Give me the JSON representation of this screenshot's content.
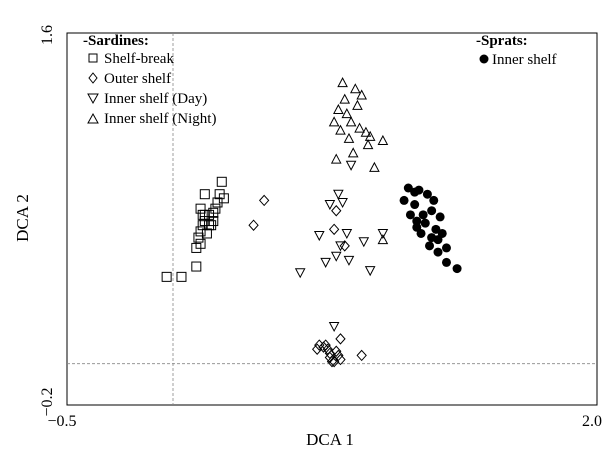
{
  "chart_data": {
    "type": "scatter",
    "xlabel": "DCA 1",
    "ylabel": "DCA 2",
    "xlim": [
      -0.5,
      2.0
    ],
    "ylim": [
      -0.2,
      1.6
    ],
    "x_tick_labels": [
      "−0.5",
      "2.0"
    ],
    "y_tick_labels": [
      "−0.2",
      "1.6"
    ],
    "reference_lines": {
      "x": 0.0,
      "y": 0.0
    },
    "grid": false,
    "legend_groups": [
      {
        "title": "-Sardines:",
        "placement": "top-left",
        "entries": [
          "Shelf-break",
          "Outer shelf",
          "Inner shelf (Day)",
          "Inner shelf (Night)"
        ]
      },
      {
        "title": "-Sprats:",
        "placement": "top-right",
        "entries": [
          "Inner shelf"
        ]
      }
    ],
    "series": [
      {
        "name": "Shelf-break",
        "group": "Sardines",
        "marker": "square",
        "points": [
          [
            -0.03,
            0.42
          ],
          [
            0.04,
            0.42
          ],
          [
            0.11,
            0.47
          ],
          [
            0.11,
            0.56
          ],
          [
            0.12,
            0.61
          ],
          [
            0.13,
            0.58
          ],
          [
            0.13,
            0.64
          ],
          [
            0.14,
            0.67
          ],
          [
            0.16,
            0.63
          ],
          [
            0.17,
            0.72
          ],
          [
            0.15,
            0.72
          ],
          [
            0.15,
            0.69
          ],
          [
            0.14,
            0.72
          ],
          [
            0.13,
            0.75
          ],
          [
            0.15,
            0.82
          ],
          [
            0.17,
            0.67
          ],
          [
            0.18,
            0.67
          ],
          [
            0.19,
            0.69
          ],
          [
            0.19,
            0.73
          ],
          [
            0.2,
            0.75
          ],
          [
            0.21,
            0.78
          ],
          [
            0.22,
            0.82
          ],
          [
            0.23,
            0.88
          ],
          [
            0.24,
            0.8
          ]
        ]
      },
      {
        "name": "Outer shelf",
        "group": "Sardines",
        "marker": "diamond",
        "points": [
          [
            0.38,
            0.67
          ],
          [
            0.43,
            0.79
          ],
          [
            0.68,
            0.07
          ],
          [
            0.69,
            0.09
          ],
          [
            0.71,
            0.08
          ],
          [
            0.72,
            0.09
          ],
          [
            0.73,
            0.07
          ],
          [
            0.74,
            0.05
          ],
          [
            0.74,
            0.03
          ],
          [
            0.75,
            0.01
          ],
          [
            0.76,
            0.01
          ],
          [
            0.77,
            0.06
          ],
          [
            0.78,
            0.04
          ],
          [
            0.79,
            0.02
          ],
          [
            0.79,
            0.12
          ],
          [
            0.81,
            0.57
          ],
          [
            0.76,
            0.65
          ],
          [
            0.77,
            0.74
          ],
          [
            0.89,
            0.04
          ]
        ]
      },
      {
        "name": "Inner shelf (Day)",
        "group": "Sardines",
        "marker": "triangle-down",
        "points": [
          [
            0.6,
            0.44
          ],
          [
            0.69,
            0.62
          ],
          [
            0.72,
            0.49
          ],
          [
            0.74,
            0.77
          ],
          [
            0.76,
            0.18
          ],
          [
            0.77,
            0.52
          ],
          [
            0.78,
            0.82
          ],
          [
            0.79,
            0.57
          ],
          [
            0.8,
            0.78
          ],
          [
            0.82,
            0.63
          ],
          [
            0.83,
            0.5
          ],
          [
            0.84,
            0.96
          ],
          [
            0.9,
            0.59
          ],
          [
            0.93,
            0.45
          ],
          [
            0.99,
            0.63
          ]
        ]
      },
      {
        "name": "Inner shelf (Night)",
        "group": "Sardines",
        "marker": "triangle-up",
        "points": [
          [
            0.76,
            1.17
          ],
          [
            0.77,
            0.99
          ],
          [
            0.78,
            1.23
          ],
          [
            0.79,
            1.13
          ],
          [
            0.8,
            1.36
          ],
          [
            0.81,
            1.28
          ],
          [
            0.82,
            1.21
          ],
          [
            0.83,
            1.09
          ],
          [
            0.84,
            1.17
          ],
          [
            0.85,
            1.02
          ],
          [
            0.86,
            1.33
          ],
          [
            0.87,
            1.25
          ],
          [
            0.88,
            1.14
          ],
          [
            0.89,
            1.3
          ],
          [
            0.91,
            1.12
          ],
          [
            0.92,
            1.06
          ],
          [
            0.93,
            1.1
          ],
          [
            0.95,
            0.95
          ],
          [
            0.99,
            1.08
          ],
          [
            0.99,
            0.6
          ]
        ]
      },
      {
        "name": "Inner shelf",
        "group": "Sprats",
        "marker": "filled-circle",
        "points": [
          [
            1.09,
            0.79
          ],
          [
            1.11,
            0.85
          ],
          [
            1.12,
            0.72
          ],
          [
            1.14,
            0.83
          ],
          [
            1.14,
            0.77
          ],
          [
            1.15,
            0.69
          ],
          [
            1.15,
            0.66
          ],
          [
            1.16,
            0.84
          ],
          [
            1.17,
            0.63
          ],
          [
            1.18,
            0.72
          ],
          [
            1.19,
            0.68
          ],
          [
            1.2,
            0.82
          ],
          [
            1.21,
            0.57
          ],
          [
            1.22,
            0.74
          ],
          [
            1.22,
            0.61
          ],
          [
            1.23,
            0.79
          ],
          [
            1.24,
            0.65
          ],
          [
            1.25,
            0.54
          ],
          [
            1.25,
            0.6
          ],
          [
            1.26,
            0.71
          ],
          [
            1.27,
            0.63
          ],
          [
            1.29,
            0.56
          ],
          [
            1.29,
            0.49
          ],
          [
            1.34,
            0.46
          ]
        ]
      }
    ]
  }
}
